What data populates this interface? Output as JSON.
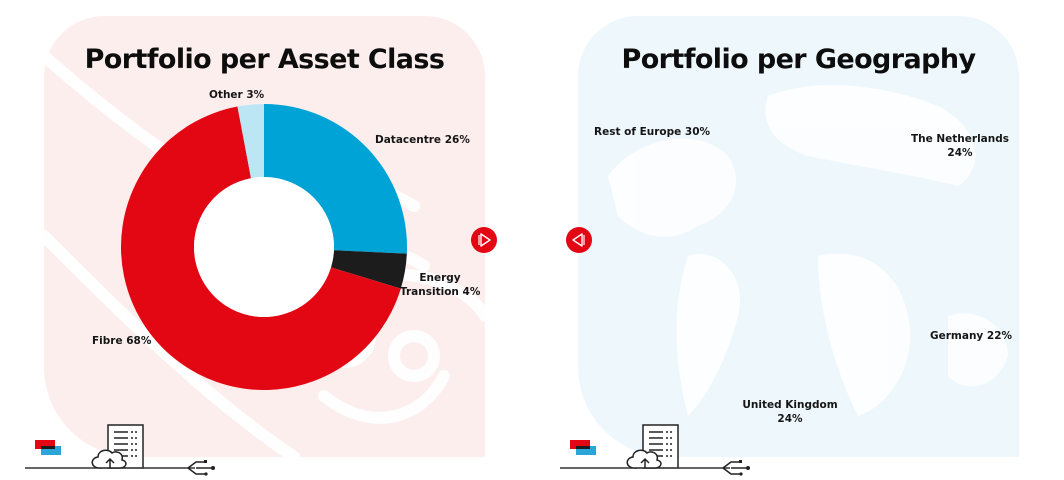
{
  "colors": {
    "red": "#e30613",
    "blue": "#00a3d6",
    "black": "#1c1c1c",
    "light_blue": "#bde6f4",
    "panel_pink": "#fdeeee",
    "panel_blue": "#eef8fc"
  },
  "navigation": {
    "next_icon": "play-right-icon",
    "prev_icon": "play-left-icon"
  },
  "chart_data": [
    {
      "type": "pie",
      "variant": "donut",
      "title": "Portfolio per Asset Class",
      "categories": [
        "Datacentre",
        "Energy Transition",
        "Fibre",
        "Other"
      ],
      "values": [
        26,
        4,
        68,
        3
      ],
      "unit": "%",
      "colors": [
        "#00a3d6",
        "#1c1c1c",
        "#e30613",
        "#bde6f4"
      ],
      "labels": [
        "Datacentre 26%",
        "Energy Transition 4%",
        "Fibre 68%",
        "Other 3%"
      ],
      "label_lines": {
        "datacentre": "Datacentre 26%",
        "energy_1": "Energy",
        "energy_2": "Transition 4%",
        "fibre": "Fibre 68%",
        "other": "Other 3%"
      },
      "start_angle_deg": 0,
      "direction": "clockwise",
      "legend": "none (direct labels)"
    },
    {
      "type": "pie",
      "variant": "donut",
      "title": "Portfolio per Geography",
      "categories": [
        "The Netherlands",
        "Germany",
        "United Kingdom",
        "Rest of Europe"
      ],
      "values": [
        24,
        22,
        24,
        30
      ],
      "unit": "%",
      "colors": [
        "#00a3d6",
        "#1c1c1c",
        "#e30613",
        "#bde6f4"
      ],
      "labels": [
        "The Netherlands 24%",
        "Germany 22%",
        "United Kingdom 24%",
        "Rest of Europe 30%"
      ],
      "label_lines": {
        "nl_1": "The Netherlands",
        "nl_2": "24%",
        "germany": "Germany 22%",
        "uk_1": "United Kingdom",
        "uk_2": "24%",
        "rest": "Rest of Europe 30%"
      },
      "start_angle_deg": 0,
      "direction": "clockwise",
      "legend": "none (direct labels)"
    }
  ]
}
